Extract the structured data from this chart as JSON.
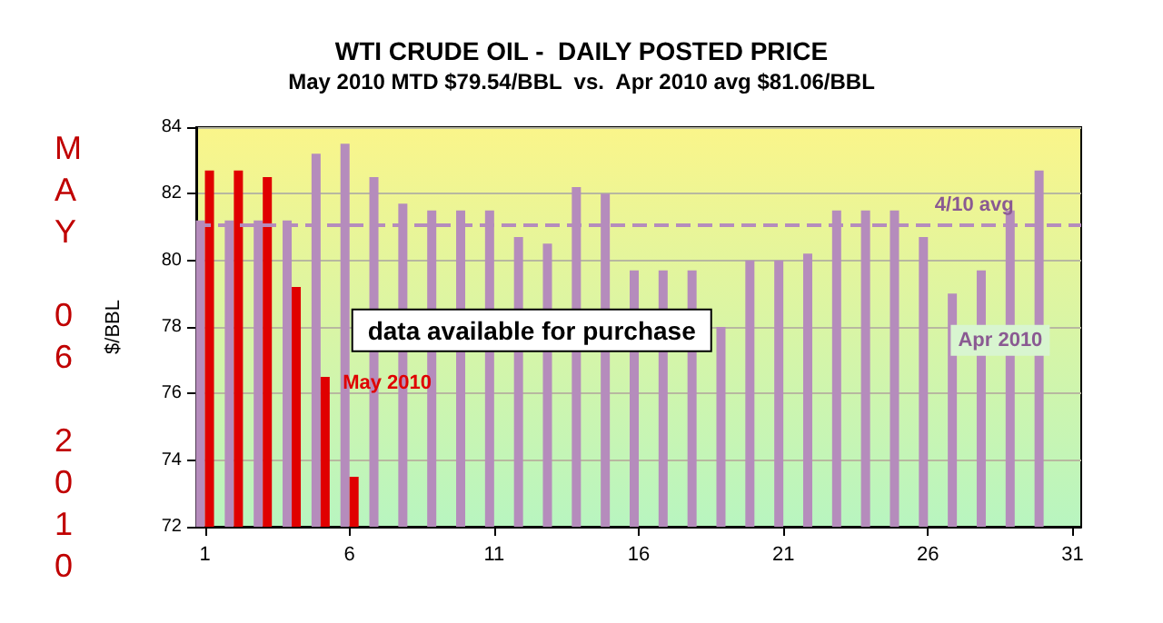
{
  "chart_data": {
    "type": "bar",
    "title": "WTI CRUDE OIL -  DAILY POSTED PRICE",
    "subtitle": "May 2010 MTD $79.54/BBL  vs.  Apr 2010 avg $81.06/BBL",
    "ylabel": "$/BBL",
    "x": [
      1,
      2,
      3,
      4,
      5,
      6,
      7,
      8,
      9,
      10,
      11,
      12,
      13,
      14,
      15,
      16,
      17,
      18,
      19,
      20,
      21,
      22,
      23,
      24,
      25,
      26,
      27,
      28,
      29,
      30
    ],
    "series": [
      {
        "name": "Apr 2010",
        "color": "#b58cbc",
        "values": [
          81.2,
          81.2,
          81.2,
          81.2,
          83.2,
          83.5,
          82.5,
          81.7,
          81.5,
          81.5,
          81.5,
          80.7,
          80.5,
          82.2,
          82.0,
          79.7,
          79.7,
          79.7,
          78.0,
          80.0,
          80.0,
          80.2,
          81.5,
          81.5,
          81.5,
          80.7,
          79.0,
          79.7,
          81.5,
          82.7
        ]
      },
      {
        "name": "May 2010",
        "color": "#e00000",
        "values": [
          82.7,
          82.7,
          82.5,
          79.2,
          76.5,
          73.5,
          null,
          null,
          null,
          null,
          null,
          null,
          null,
          null,
          null,
          null,
          null,
          null,
          null,
          null,
          null,
          null,
          null,
          null,
          null,
          null,
          null,
          null,
          null,
          null
        ]
      }
    ],
    "xlim": [
      0.7,
      31.3
    ],
    "xticks": [
      1,
      6,
      11,
      16,
      21,
      26,
      31
    ],
    "ylim": [
      72,
      84
    ],
    "yticks": [
      72,
      74,
      76,
      78,
      80,
      82,
      84
    ],
    "grid": "y",
    "legend": false,
    "ref_lines": [
      {
        "axis": "y",
        "value": 81.06,
        "label": "4/10 avg",
        "color": "#b58cbc",
        "line_style": "dashed"
      }
    ],
    "annotations": [
      "MAY 06 2010",
      "data available for purchase"
    ]
  }
}
